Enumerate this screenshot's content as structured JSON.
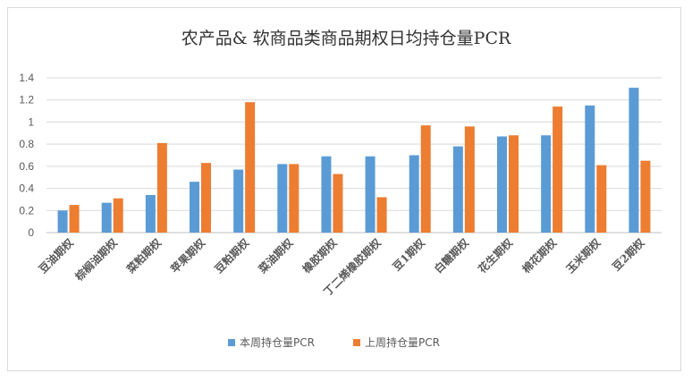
{
  "chart_data": {
    "type": "bar",
    "title": "农产品& 软商品类商品期权日均持仓量PCR",
    "xlabel": "",
    "ylabel": "",
    "ylim": [
      0,
      1.4
    ],
    "yticks": [
      "0",
      "0.2",
      "0.4",
      "0.6",
      "0.8",
      "1",
      "1.2",
      "1.4"
    ],
    "grid": true,
    "legend_position": "bottom",
    "categories": [
      "豆油期权",
      "棕榈油期权",
      "菜粕期权",
      "苹果期权",
      "豆粕期权",
      "菜油期权",
      "橡胶期权",
      "丁二烯橡胶期权",
      "豆1期权",
      "白糖期权",
      "花生期权",
      "棉花期权",
      "玉米期权",
      "豆2期权"
    ],
    "series": [
      {
        "name": "本周持仓量PCR",
        "color": "#5b9bd5",
        "values": [
          0.2,
          0.27,
          0.34,
          0.46,
          0.57,
          0.62,
          0.69,
          0.69,
          0.7,
          0.78,
          0.87,
          0.88,
          1.15,
          1.31
        ]
      },
      {
        "name": "上周持仓量PCR",
        "color": "#ed7d31",
        "values": [
          0.25,
          0.31,
          0.81,
          0.63,
          1.18,
          0.62,
          0.53,
          0.32,
          0.97,
          0.96,
          0.88,
          1.14,
          0.61,
          0.65
        ]
      }
    ]
  }
}
